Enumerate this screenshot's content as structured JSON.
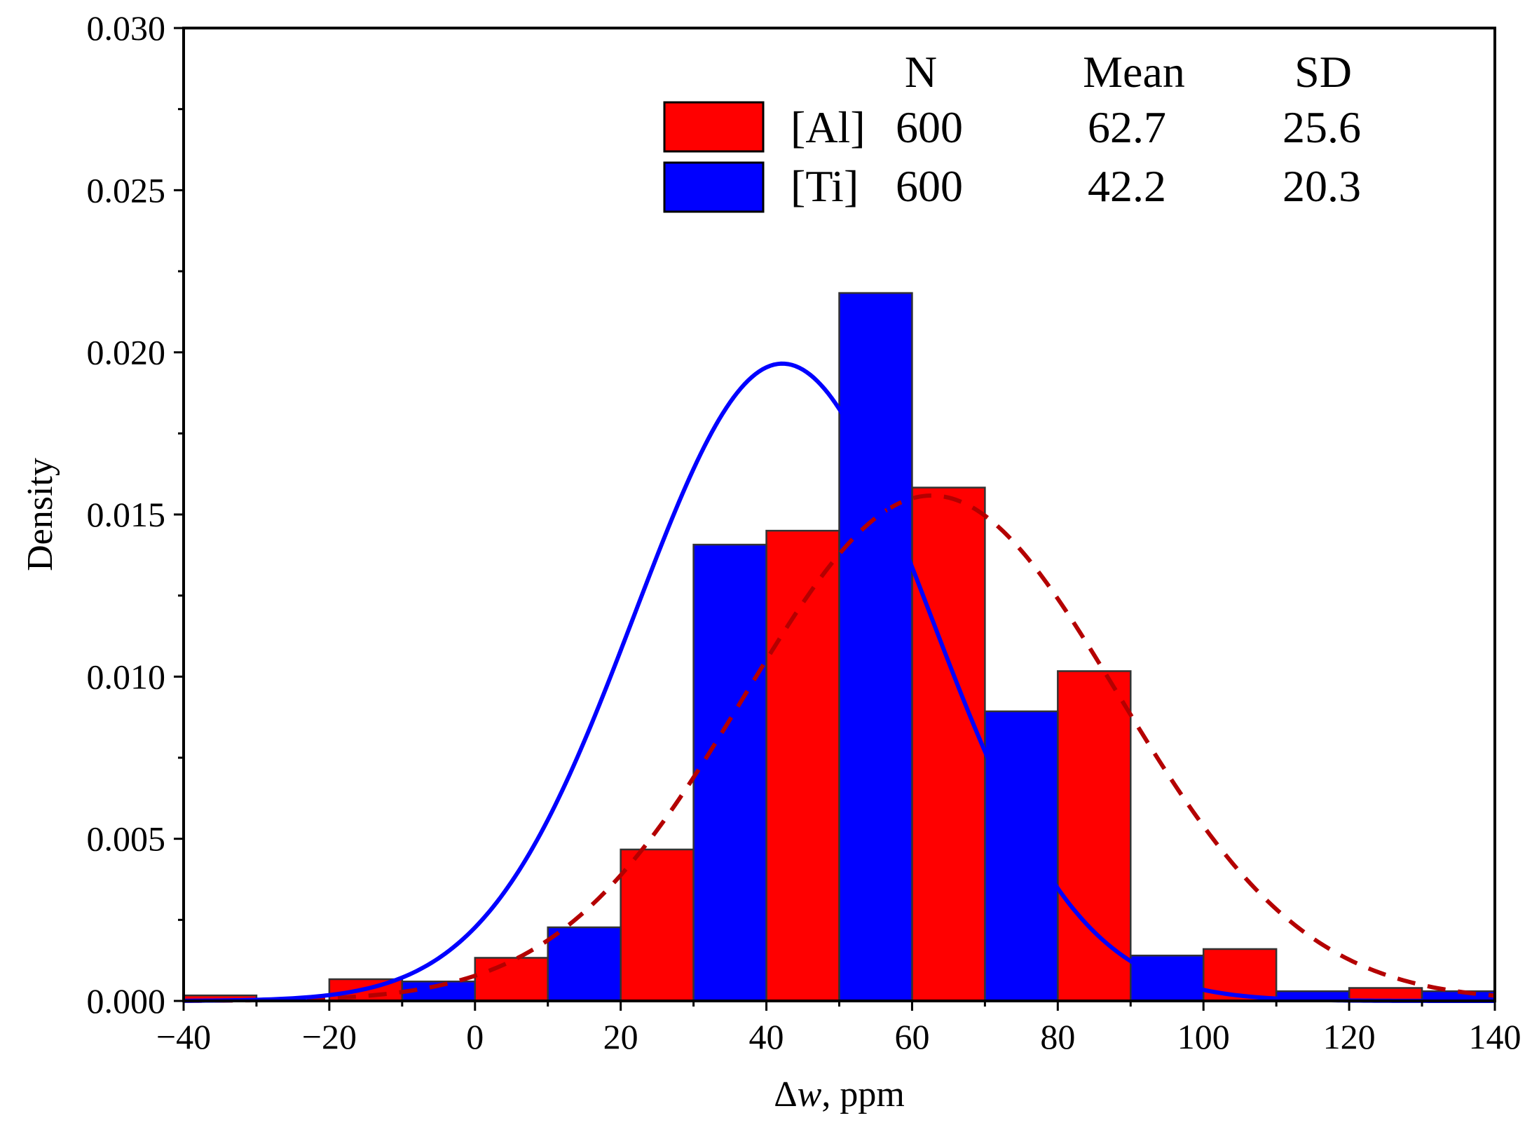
{
  "chart_data": {
    "type": "bar",
    "xlabel_symbol": "Δ",
    "xlabel_var": "w",
    "xlabel_unit": ", ppm",
    "ylabel": "Density",
    "xlim": [
      -40,
      140
    ],
    "ylim": [
      0,
      0.03
    ],
    "x_ticks": [
      -40,
      -20,
      0,
      20,
      40,
      60,
      80,
      100,
      120,
      140
    ],
    "x_tick_labels": [
      "−40",
      "−20",
      "0",
      "20",
      "40",
      "60",
      "80",
      "100",
      "120",
      "140"
    ],
    "y_ticks": [
      0,
      0.005,
      0.01,
      0.015,
      0.02,
      0.025,
      0.03
    ],
    "y_tick_labels": [
      "0.000",
      "0.005",
      "0.010",
      "0.015",
      "0.020",
      "0.025",
      "0.030"
    ],
    "legend": {
      "placement": "top-right",
      "headers": [
        "N",
        "Mean",
        "SD"
      ],
      "rows": [
        {
          "label": "[Al]",
          "n": "600",
          "mean": "62.7",
          "sd": "25.6"
        },
        {
          "label": "[Ti]",
          "n": "600",
          "mean": "42.2",
          "sd": "20.3"
        }
      ]
    },
    "series": [
      {
        "name": "[Al]",
        "color": "#ff0000",
        "curve_color": "#b40000",
        "curve_style": "dashed",
        "mean": 62.7,
        "sd": 25.6,
        "bins": [
          {
            "x0": -40,
            "x1": -30,
            "y": 0.00017
          },
          {
            "x0": -20,
            "x1": -10,
            "y": 0.00067
          },
          {
            "x0": 0,
            "x1": 10,
            "y": 0.00133
          },
          {
            "x0": 20,
            "x1": 30,
            "y": 0.00467
          },
          {
            "x0": 40,
            "x1": 50,
            "y": 0.0145
          },
          {
            "x0": 60,
            "x1": 70,
            "y": 0.01583
          },
          {
            "x0": 80,
            "x1": 90,
            "y": 0.01017
          },
          {
            "x0": 100,
            "x1": 110,
            "y": 0.0016
          },
          {
            "x0": 120,
            "x1": 130,
            "y": 0.0004
          }
        ]
      },
      {
        "name": "[Ti]",
        "color": "#0000ff",
        "curve_color": "#0000ff",
        "curve_style": "solid",
        "mean": 42.2,
        "sd": 20.3,
        "bins": [
          {
            "x0": -10,
            "x1": 0,
            "y": 0.0006
          },
          {
            "x0": 10,
            "x1": 20,
            "y": 0.00227
          },
          {
            "x0": 30,
            "x1": 40,
            "y": 0.01407
          },
          {
            "x0": 50,
            "x1": 60,
            "y": 0.02183
          },
          {
            "x0": 70,
            "x1": 80,
            "y": 0.00893
          },
          {
            "x0": 90,
            "x1": 100,
            "y": 0.0014
          },
          {
            "x0": 110,
            "x1": 120,
            "y": 0.0003
          },
          {
            "x0": 130,
            "x1": 140,
            "y": 0.0003
          }
        ]
      }
    ]
  }
}
